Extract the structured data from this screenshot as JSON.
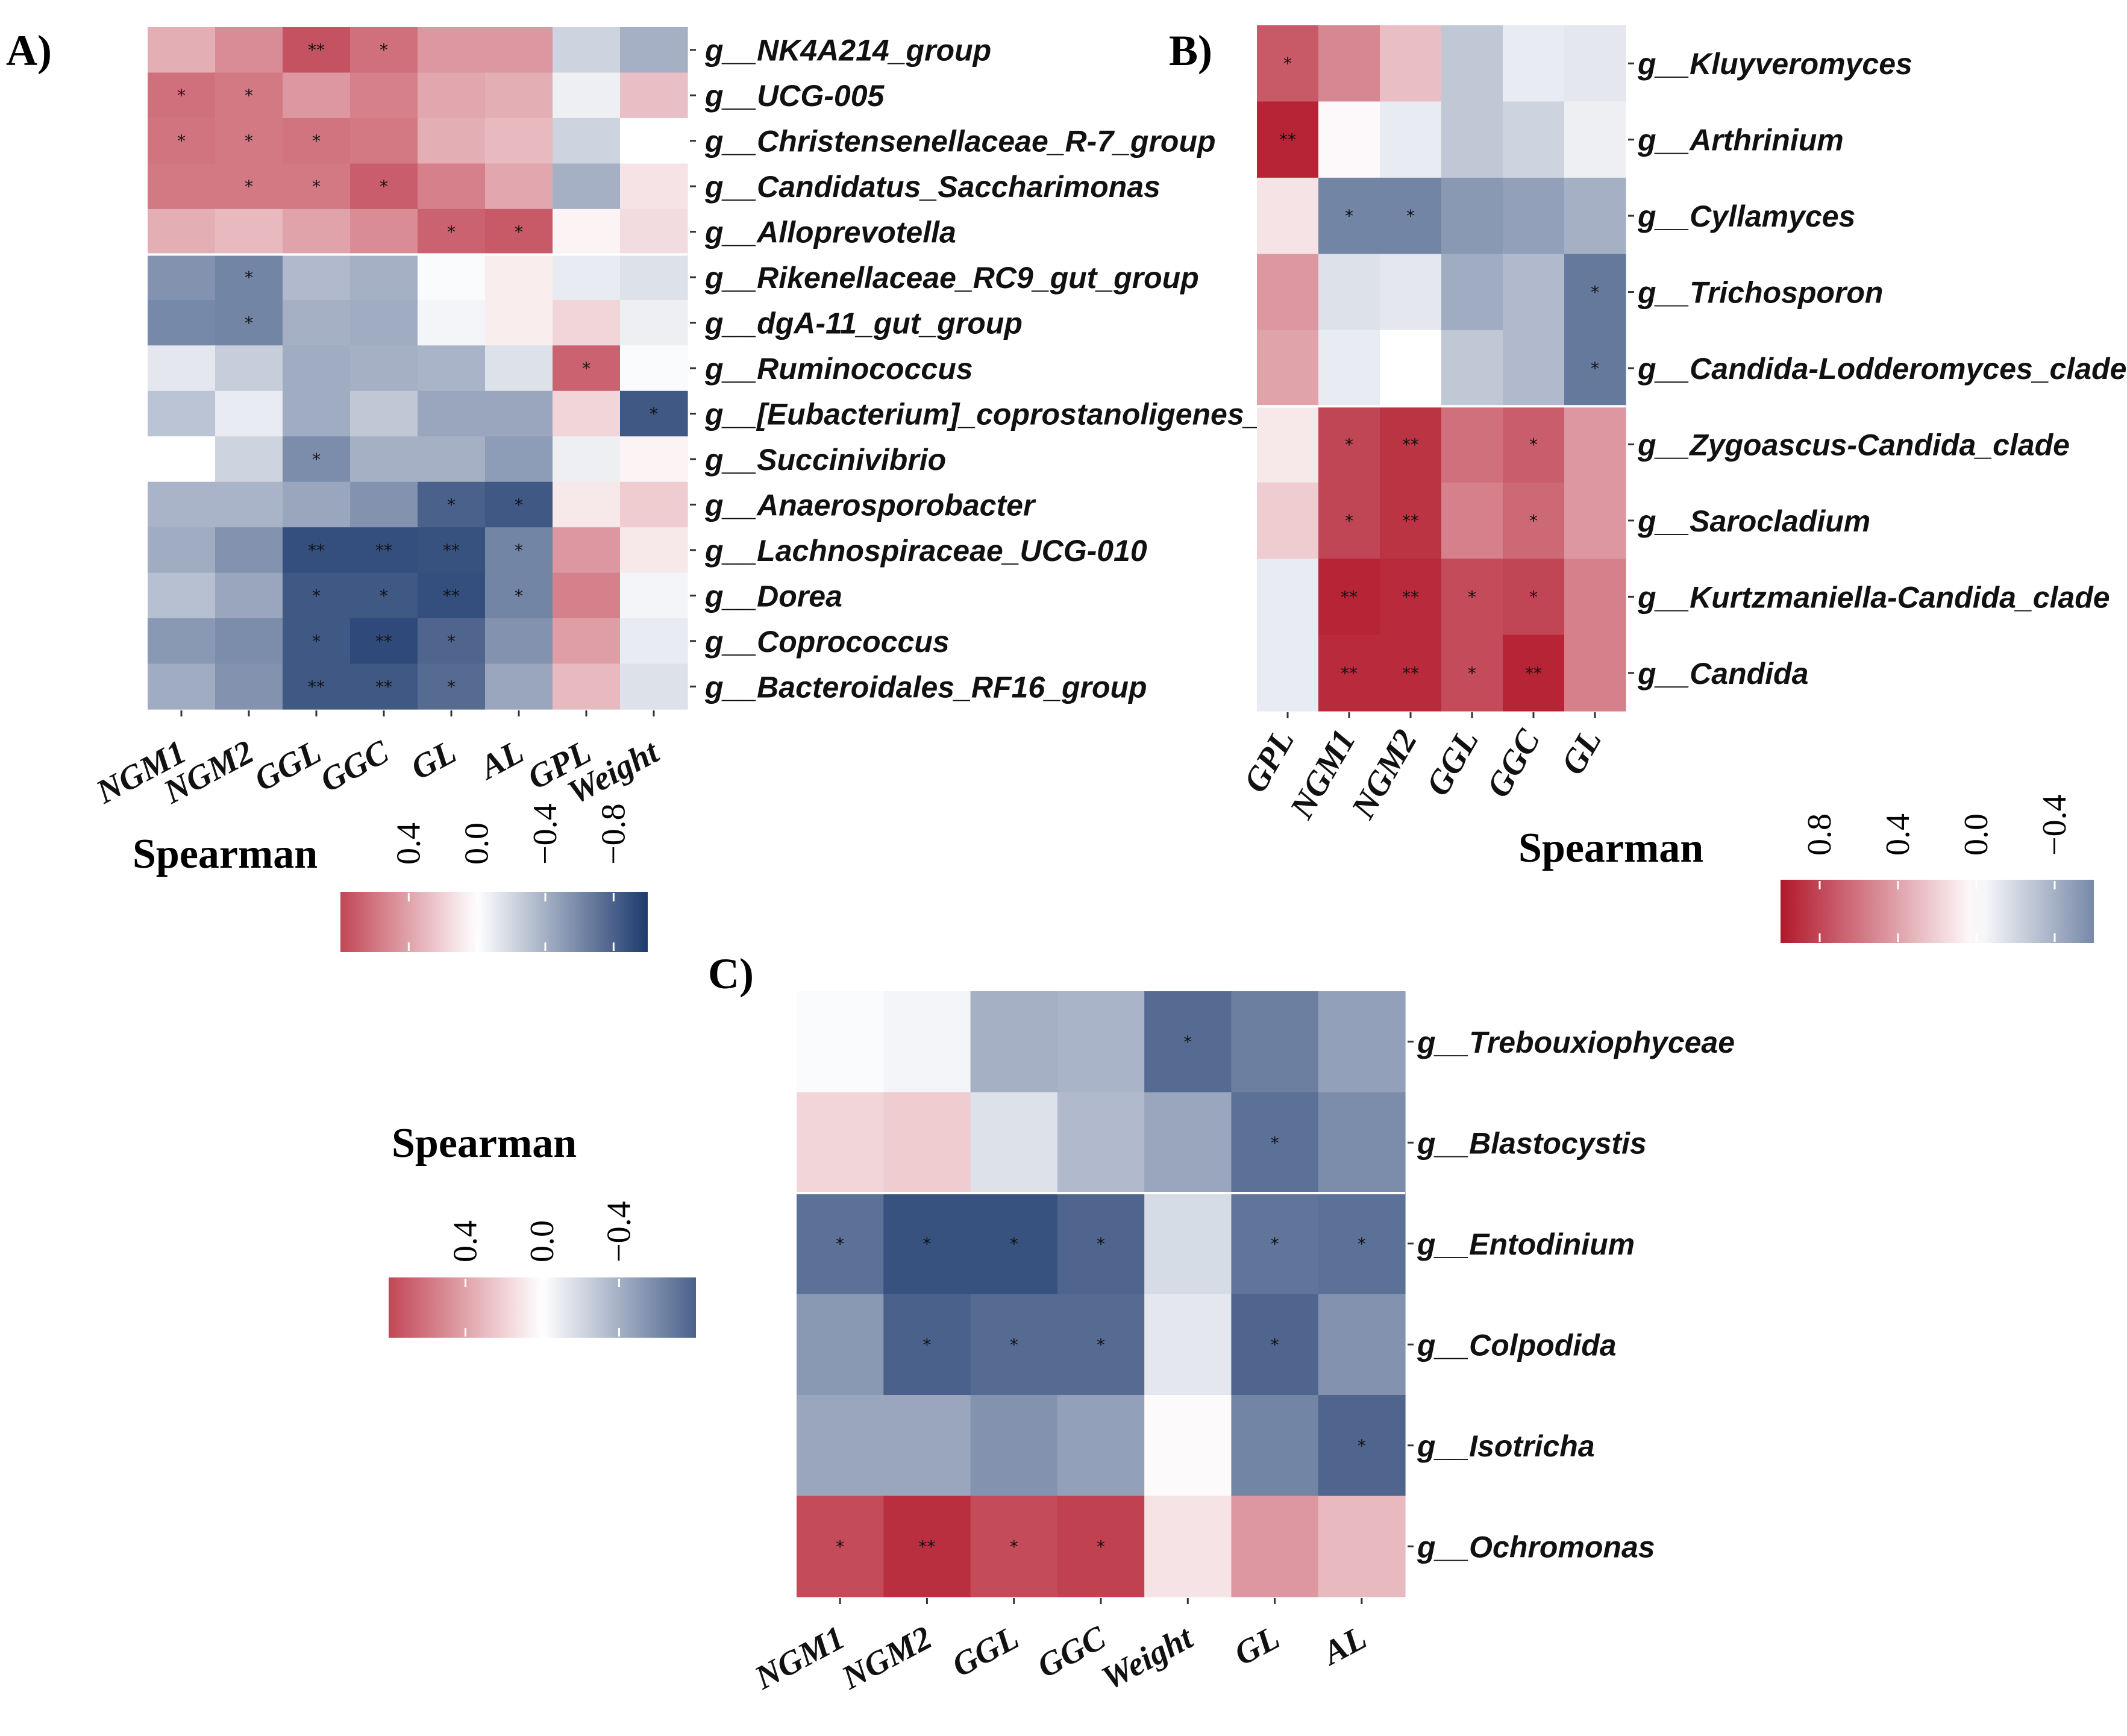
{
  "colors": {
    "pos": "#b2182b",
    "mid": "#ffffff",
    "neg": "#1d3a6e",
    "sep": "#ffffff"
  },
  "chart_data": [
    {
      "type": "heatmap",
      "panel_label": "A)",
      "legend_title": "Spearman",
      "legend_ticks": [
        "0.4",
        "0.0",
        "−0.4",
        "−0.8"
      ],
      "legend_tick_values": [
        0.4,
        0.0,
        -0.4,
        -0.8
      ],
      "legend_range": [
        0.8,
        -1.0
      ],
      "columns": [
        "NGM1",
        "NGM2",
        "GGL",
        "GGC",
        "GL",
        "AL",
        "GPL",
        "Weight"
      ],
      "rows": [
        "g__NK4A214_group",
        "g__UCG-005",
        "g__Christensenellaceae_R-7_group",
        "g__Candidatus_Saccharimonas",
        "g__Alloprevotella",
        "g__Rikenellaceae_RC9_gut_group",
        "g__dgA-11_gut_group",
        "g__Ruminococcus",
        "g__[Eubacterium]_coprostanoligenes_group",
        "g__Succinivibrio",
        "g__Anaerosporobacter",
        "g__Lachnospiraceae_UCG-010",
        "g__Dorea",
        "g__Coprococcus",
        "g__Bacteroidales_RF16_group"
      ],
      "values": [
        [
          0.35,
          0.5,
          0.75,
          0.62,
          0.45,
          0.45,
          -0.22,
          -0.4
        ],
        [
          0.62,
          0.58,
          0.45,
          0.55,
          0.38,
          0.35,
          -0.08,
          0.28
        ],
        [
          0.6,
          0.58,
          0.6,
          0.58,
          0.35,
          0.3,
          -0.22,
          0.0
        ],
        [
          0.58,
          0.58,
          0.58,
          0.7,
          0.55,
          0.38,
          -0.4,
          0.12
        ],
        [
          0.35,
          0.3,
          0.4,
          0.5,
          0.68,
          0.72,
          0.05,
          0.15
        ],
        [
          -0.55,
          -0.62,
          -0.35,
          -0.4,
          -0.02,
          0.08,
          -0.1,
          -0.15
        ],
        [
          -0.6,
          -0.62,
          -0.4,
          -0.42,
          -0.05,
          0.08,
          0.18,
          -0.08
        ],
        [
          -0.12,
          -0.25,
          -0.42,
          -0.4,
          -0.38,
          -0.15,
          0.68,
          -0.02
        ],
        [
          -0.3,
          -0.1,
          -0.42,
          -0.28,
          -0.45,
          -0.45,
          0.18,
          -0.85
        ],
        [
          0.0,
          -0.22,
          -0.58,
          -0.4,
          -0.4,
          -0.5,
          -0.08,
          0.05
        ],
        [
          -0.38,
          -0.38,
          -0.45,
          -0.55,
          -0.8,
          -0.85,
          0.1,
          0.22
        ],
        [
          -0.42,
          -0.55,
          -0.9,
          -0.9,
          -0.88,
          -0.62,
          0.45,
          0.1
        ],
        [
          -0.32,
          -0.45,
          -0.85,
          -0.85,
          -0.9,
          -0.62,
          0.55,
          -0.05
        ],
        [
          -0.52,
          -0.58,
          -0.85,
          -0.92,
          -0.78,
          -0.55,
          0.42,
          -0.1
        ],
        [
          -0.42,
          -0.55,
          -0.85,
          -0.85,
          -0.75,
          -0.45,
          0.3,
          -0.15
        ]
      ],
      "stars": [
        [
          "",
          "",
          "**",
          "*",
          "",
          "",
          "",
          ""
        ],
        [
          "*",
          "*",
          "",
          "",
          "",
          "",
          "",
          ""
        ],
        [
          "*",
          "*",
          "*",
          "",
          "",
          "",
          "",
          ""
        ],
        [
          "",
          "*",
          "*",
          "*",
          "",
          "",
          "",
          ""
        ],
        [
          "",
          "",
          "",
          "",
          "*",
          "*",
          "",
          ""
        ],
        [
          "",
          "*",
          "",
          "",
          "",
          "",
          "",
          ""
        ],
        [
          "",
          "*",
          "",
          "",
          "",
          "",
          "",
          ""
        ],
        [
          "",
          "",
          "",
          "",
          "",
          "",
          "*",
          ""
        ],
        [
          "",
          "",
          "",
          "",
          "",
          "",
          "",
          "*"
        ],
        [
          "",
          "",
          "*",
          "",
          "",
          "",
          "",
          ""
        ],
        [
          "",
          "",
          "",
          "",
          "*",
          "*",
          "",
          ""
        ],
        [
          "",
          "",
          "**",
          "**",
          "**",
          "*",
          "",
          ""
        ],
        [
          "",
          "",
          "*",
          "*",
          "**",
          "*",
          "",
          ""
        ],
        [
          "",
          "",
          "*",
          "**",
          "*",
          "",
          "",
          ""
        ],
        [
          "",
          "",
          "**",
          "**",
          "*",
          "",
          "",
          ""
        ]
      ]
    },
    {
      "type": "heatmap",
      "panel_label": "B)",
      "legend_title": "Spearman",
      "legend_ticks": [
        "0.8",
        "0.4",
        "0.0",
        "−0.4"
      ],
      "legend_tick_values": [
        0.8,
        0.4,
        0.0,
        -0.4
      ],
      "legend_range": [
        1.0,
        -0.6
      ],
      "columns": [
        "GPL",
        "NGM1",
        "NGM2",
        "GGL",
        "GGC",
        "GL"
      ],
      "rows": [
        "g__Kluyveromyces",
        "g__Arthrinium",
        "g__Cyllamyces",
        "g__Trichosporon",
        "g__Candida-Lodderomyces_clade",
        "g__Zygoascus-Candida_clade",
        "g__Sarocladium",
        "g__Kurtzmaniella-Candida_clade",
        "g__Candida"
      ],
      "values": [
        [
          0.72,
          0.52,
          0.28,
          -0.28,
          -0.1,
          -0.12
        ],
        [
          0.95,
          0.03,
          -0.1,
          -0.28,
          -0.22,
          -0.08
        ],
        [
          0.12,
          -0.62,
          -0.62,
          -0.52,
          -0.48,
          -0.4
        ],
        [
          0.45,
          -0.15,
          -0.12,
          -0.42,
          -0.35,
          -0.68
        ],
        [
          0.4,
          -0.1,
          0.0,
          -0.28,
          -0.35,
          -0.68
        ],
        [
          0.1,
          0.8,
          0.88,
          0.62,
          0.7,
          0.45
        ],
        [
          0.22,
          0.8,
          0.88,
          0.55,
          0.65,
          0.45
        ],
        [
          -0.1,
          0.95,
          0.92,
          0.78,
          0.8,
          0.55
        ],
        [
          -0.1,
          0.92,
          0.92,
          0.78,
          0.95,
          0.55
        ]
      ],
      "stars": [
        [
          "*",
          "",
          "",
          "",
          "",
          ""
        ],
        [
          "**",
          "",
          "",
          "",
          "",
          ""
        ],
        [
          "",
          "*",
          "*",
          "",
          "",
          ""
        ],
        [
          "",
          "",
          "",
          "",
          "",
          "*"
        ],
        [
          "",
          "",
          "",
          "",
          "",
          "*"
        ],
        [
          "",
          "*",
          "**",
          "",
          "*",
          ""
        ],
        [
          "",
          "*",
          "**",
          "",
          "*",
          ""
        ],
        [
          "",
          "**",
          "**",
          "*",
          "*",
          ""
        ],
        [
          "",
          "**",
          "**",
          "*",
          "**",
          ""
        ]
      ]
    },
    {
      "type": "heatmap",
      "panel_label": "C)",
      "legend_title": "Spearman",
      "legend_ticks": [
        "0.4",
        "0.0",
        "−0.4"
      ],
      "legend_tick_values": [
        0.4,
        0.0,
        -0.4
      ],
      "legend_range": [
        0.8,
        -0.8
      ],
      "columns": [
        "NGM1",
        "NGM2",
        "GGL",
        "GGC",
        "Weight",
        "GL",
        "AL"
      ],
      "rows": [
        "g__Trebouxiophyceae",
        "g__Blastocystis",
        "g__Entodinium",
        "g__Colpodida",
        "g__Isotricha",
        "g__Ochromonas"
      ],
      "values": [
        [
          -0.02,
          -0.05,
          -0.4,
          -0.38,
          -0.75,
          -0.65,
          -0.48
        ],
        [
          0.18,
          0.22,
          -0.15,
          -0.35,
          -0.45,
          -0.72,
          -0.58
        ],
        [
          -0.72,
          -0.88,
          -0.88,
          -0.78,
          -0.18,
          -0.7,
          -0.72
        ],
        [
          -0.52,
          -0.8,
          -0.75,
          -0.75,
          -0.12,
          -0.78,
          -0.55
        ],
        [
          -0.45,
          -0.45,
          -0.55,
          -0.48,
          0.02,
          -0.62,
          -0.78
        ],
        [
          0.78,
          0.9,
          0.78,
          0.82,
          0.12,
          0.45,
          0.3
        ]
      ],
      "stars": [
        [
          "",
          "",
          "",
          "",
          "*",
          "",
          ""
        ],
        [
          "",
          "",
          "",
          "",
          "",
          "*",
          ""
        ],
        [
          "*",
          "*",
          "*",
          "*",
          "",
          "*",
          "*"
        ],
        [
          "",
          "*",
          "*",
          "*",
          "",
          "*",
          ""
        ],
        [
          "",
          "",
          "",
          "",
          "",
          "",
          "*"
        ],
        [
          "*",
          "**",
          "*",
          "*",
          "",
          "",
          ""
        ]
      ]
    }
  ]
}
